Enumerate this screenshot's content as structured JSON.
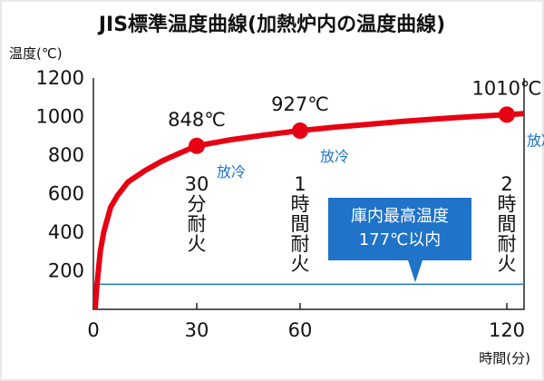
{
  "chart_data": {
    "type": "line",
    "title": "JIS標準温度曲線(加熱炉内の温度曲線)",
    "xlabel": "時間(分)",
    "ylabel": "温度(℃)",
    "xlim": [
      0,
      125
    ],
    "ylim": [
      0,
      1200
    ],
    "x_ticks": [
      0,
      30,
      60,
      120
    ],
    "y_ticks": [
      200,
      400,
      600,
      800,
      1000,
      1200
    ],
    "grid": false,
    "series": [
      {
        "color": "#e60012",
        "x": [
          0.5,
          1,
          2,
          3,
          5,
          7,
          10,
          15,
          20,
          25,
          30,
          40,
          50,
          60,
          70,
          80,
          90,
          100,
          110,
          120,
          125
        ],
        "y": [
          0,
          120,
          300,
          400,
          530,
          590,
          660,
          720,
          770,
          810,
          848,
          880,
          905,
          927,
          945,
          960,
          975,
          988,
          1000,
          1010,
          1015
        ]
      }
    ],
    "markers": [
      {
        "x": 30,
        "y": 848,
        "label": "848℃",
        "duration": "30分耐火",
        "cooling": "放冷"
      },
      {
        "x": 60,
        "y": 927,
        "label": "927℃",
        "duration": "1時間耐火",
        "cooling": "放冷"
      },
      {
        "x": 120,
        "y": 1010,
        "label": "1010℃",
        "duration": "2時間耐火",
        "cooling": "放冷"
      }
    ],
    "reference_line": {
      "y": 130,
      "color": "#1f73c8",
      "callout": [
        "庫内最高温度",
        "177℃以内"
      ],
      "callout_color": "#1f73c8"
    }
  }
}
